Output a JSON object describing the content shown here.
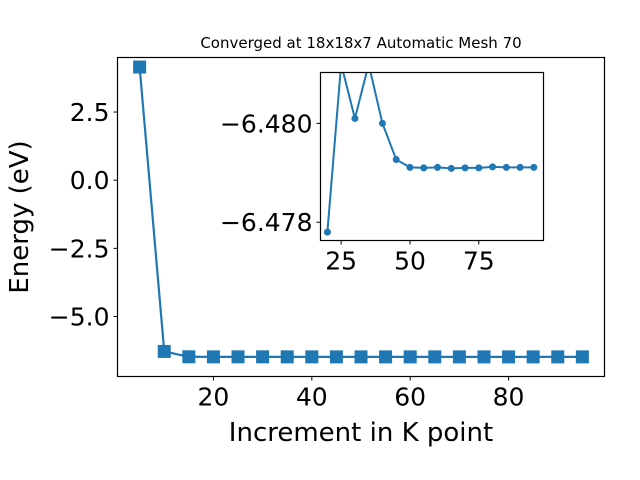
{
  "chart_data": [
    {
      "type": "line",
      "title": "Converged at 18x18x7 Automatic Mesh 70",
      "xlabel": "Increment in K point",
      "ylabel": "Energy (eV)",
      "xlim": [
        0.5,
        99.5
      ],
      "ylim": [
        -7.2,
        4.5
      ],
      "xticks": [
        20,
        40,
        60,
        80
      ],
      "xtick_labels": [
        "20",
        "40",
        "60",
        "80"
      ],
      "yticks": [
        2.5,
        0.0,
        -2.5,
        -5.0
      ],
      "ytick_labels": [
        "2.5",
        "0.0",
        "−2.5",
        "−5.0"
      ],
      "marker": "square",
      "color": "#1f77b4",
      "grid": false,
      "series": [
        {
          "x": [
            5,
            10,
            15,
            20,
            25,
            30,
            35,
            40,
            45,
            50,
            55,
            60,
            65,
            70,
            75,
            80,
            85,
            90,
            95
          ],
          "y": [
            4.15,
            -6.28,
            -6.4769,
            -6.4802,
            -6.4795,
            -6.4789,
            -6.4796,
            -6.4799,
            -6.4802,
            -6.4803,
            -6.4804,
            -6.4804,
            -6.4804,
            -6.4804,
            -6.4804,
            -6.4804,
            -6.4804,
            -6.4804,
            -6.4804
          ]
        }
      ]
    },
    {
      "type": "line",
      "title": "",
      "xlabel": "",
      "ylabel": "",
      "xlim": [
        17.5,
        98.5
      ],
      "ylim": [
        -6.47763,
        -6.48103
      ],
      "xticks": [
        25,
        50,
        75
      ],
      "xtick_labels": [
        "25",
        "50",
        "75"
      ],
      "yticks": [
        -6.48,
        -6.478
      ],
      "ytick_labels": [
        "−6.480",
        "−6.478"
      ],
      "marker": "circle",
      "color": "#1f77b4",
      "grid": false,
      "series": [
        {
          "x": [
            20,
            25,
            30,
            35,
            40,
            45,
            50,
            55,
            60,
            65,
            70,
            75,
            80,
            85,
            90,
            95
          ],
          "y": [
            -6.4778,
            -6.4812,
            -6.4801,
            -6.4812,
            -6.48,
            -6.47927,
            -6.47911,
            -6.4791,
            -6.47911,
            -6.47909,
            -6.4791,
            -6.4791,
            -6.47912,
            -6.47911,
            -6.47911,
            -6.47911
          ]
        }
      ]
    }
  ]
}
